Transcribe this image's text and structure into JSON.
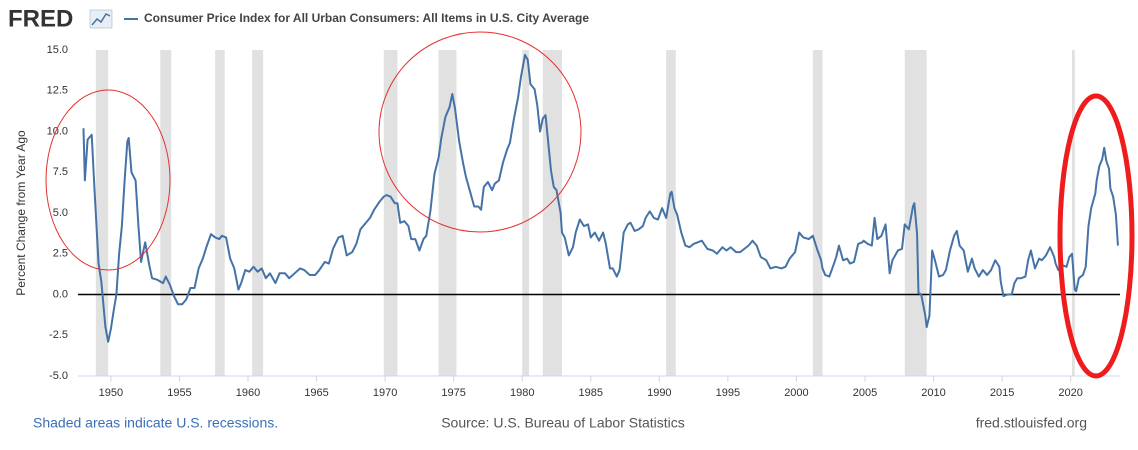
{
  "chart_data": {
    "type": "line",
    "logo": "FRED",
    "ylabel": "Percent Change from Year Ago",
    "footnote": "Shaded areas indicate U.S. recessions.",
    "source": "Source: U.S. Bureau of Labor Statistics",
    "url": "fred.stlouisfed.org",
    "xlim": [
      1947.6,
      2023.6
    ],
    "xticks": [
      1950,
      1955,
      1960,
      1965,
      1970,
      1975,
      1980,
      1985,
      1990,
      1995,
      2000,
      2005,
      2010,
      2015,
      2020
    ],
    "ylim": [
      -5,
      15
    ],
    "yticks": [
      {
        "value": 15,
        "label": "15.0"
      },
      {
        "value": 12.5,
        "label": "12.5"
      },
      {
        "value": 10,
        "label": "10.0"
      },
      {
        "value": 7.5,
        "label": "7.5"
      },
      {
        "value": 5,
        "label": "5.0"
      },
      {
        "value": 2.5,
        "label": "2.5"
      },
      {
        "value": 0,
        "label": "0.0"
      },
      {
        "value": -2.5,
        "label": "-2.5"
      },
      {
        "value": -5,
        "label": "-5.0"
      }
    ],
    "recession_color": "#e1e1e1",
    "recessions": [
      [
        1948.9,
        1949.8
      ],
      [
        1953.6,
        1954.4
      ],
      [
        1957.6,
        1958.3
      ],
      [
        1960.3,
        1961.1
      ],
      [
        1969.9,
        1970.9
      ],
      [
        1973.9,
        1975.2
      ],
      [
        1980.0,
        1980.5
      ],
      [
        1981.5,
        1982.9
      ],
      [
        1990.5,
        1991.2
      ],
      [
        2001.2,
        2001.9
      ],
      [
        2007.9,
        2009.5
      ],
      [
        2020.1,
        2020.3
      ]
    ],
    "x": [
      1948.0,
      1948.1,
      1948.3,
      1948.6,
      1948.8,
      1949.1,
      1949.3,
      1949.6,
      1949.8,
      1950.0,
      1950.2,
      1950.4,
      1950.6,
      1950.8,
      1951.0,
      1951.2,
      1951.3,
      1951.5,
      1951.8,
      1952.0,
      1952.2,
      1952.5,
      1952.8,
      1953.0,
      1953.4,
      1953.8,
      1954.0,
      1954.3,
      1954.6,
      1954.9,
      1955.2,
      1955.5,
      1955.8,
      1956.1,
      1956.4,
      1956.7,
      1957.0,
      1957.3,
      1957.6,
      1957.9,
      1958.1,
      1958.4,
      1958.7,
      1959.0,
      1959.3,
      1959.5,
      1959.8,
      1960.1,
      1960.4,
      1960.7,
      1961.0,
      1961.3,
      1961.6,
      1962.0,
      1962.3,
      1962.7,
      1963.0,
      1963.4,
      1963.8,
      1964.1,
      1964.5,
      1964.9,
      1965.2,
      1965.6,
      1965.9,
      1966.2,
      1966.6,
      1966.9,
      1967.2,
      1967.6,
      1967.9,
      1968.2,
      1968.6,
      1968.9,
      1969.2,
      1969.6,
      1969.9,
      1970.1,
      1970.4,
      1970.7,
      1970.9,
      1971.1,
      1971.4,
      1971.7,
      1971.9,
      1972.2,
      1972.5,
      1972.8,
      1973.0,
      1973.3,
      1973.6,
      1973.9,
      1974.1,
      1974.4,
      1974.7,
      1974.9,
      1975.1,
      1975.4,
      1975.7,
      1975.9,
      1976.2,
      1976.5,
      1976.8,
      1977.0,
      1977.2,
      1977.5,
      1977.8,
      1978.0,
      1978.3,
      1978.6,
      1978.9,
      1979.1,
      1979.4,
      1979.7,
      1979.9,
      1980.2,
      1980.4,
      1980.6,
      1980.9,
      1981.1,
      1981.3,
      1981.5,
      1981.7,
      1981.9,
      1982.1,
      1982.3,
      1982.5,
      1982.8,
      1982.9,
      1983.1,
      1983.4,
      1983.7,
      1983.9,
      1984.2,
      1984.5,
      1984.8,
      1985.0,
      1985.3,
      1985.6,
      1985.9,
      1986.1,
      1986.4,
      1986.6,
      1986.9,
      1987.1,
      1987.4,
      1987.7,
      1987.9,
      1988.2,
      1988.5,
      1988.8,
      1989.0,
      1989.3,
      1989.6,
      1989.9,
      1990.2,
      1990.5,
      1990.8,
      1990.9,
      1991.1,
      1991.3,
      1991.6,
      1991.9,
      1992.2,
      1992.5,
      1992.8,
      1993.1,
      1993.5,
      1993.9,
      1994.2,
      1994.6,
      1994.9,
      1995.2,
      1995.6,
      1995.9,
      1996.2,
      1996.5,
      1996.8,
      1997.1,
      1997.4,
      1997.8,
      1998.1,
      1998.5,
      1998.9,
      1999.2,
      1999.5,
      1999.9,
      2000.2,
      2000.5,
      2000.9,
      2001.2,
      2001.5,
      2001.8,
      2001.9,
      2002.1,
      2002.4,
      2002.7,
      2002.9,
      2003.1,
      2003.4,
      2003.7,
      2003.9,
      2004.2,
      2004.5,
      2004.8,
      2004.9,
      2005.2,
      2005.5,
      2005.7,
      2005.9,
      2006.2,
      2006.5,
      2006.8,
      2007.0,
      2007.4,
      2007.7,
      2007.9,
      2008.2,
      2008.5,
      2008.6,
      2008.8,
      2008.9,
      2009.1,
      2009.4,
      2009.5,
      2009.7,
      2009.9,
      2010.1,
      2010.4,
      2010.7,
      2010.9,
      2011.2,
      2011.5,
      2011.7,
      2011.9,
      2012.2,
      2012.5,
      2012.8,
      2013.0,
      2013.3,
      2013.6,
      2013.9,
      2014.2,
      2014.5,
      2014.8,
      2014.9,
      2015.1,
      2015.4,
      2015.7,
      2015.9,
      2016.1,
      2016.4,
      2016.7,
      2016.9,
      2017.1,
      2017.4,
      2017.7,
      2017.9,
      2018.2,
      2018.5,
      2018.8,
      2018.9,
      2019.1,
      2019.4,
      2019.7,
      2019.9,
      2020.1,
      2020.3,
      2020.4,
      2020.6,
      2020.9,
      2021.1,
      2021.3,
      2021.5,
      2021.8,
      2021.9,
      2022.1,
      2022.3,
      2022.45,
      2022.6,
      2022.8,
      2022.9,
      2023.1,
      2023.3,
      2023.45
    ],
    "series": [
      {
        "name": "Consumer Price Index for All Urban Consumers: All Items in U.S. City Average",
        "color": "#4572a7",
        "values": [
          10.2,
          7.0,
          9.5,
          9.8,
          6.5,
          1.9,
          0.8,
          -2.0,
          -2.9,
          -2.1,
          -1.0,
          0.0,
          2.5,
          4.2,
          7.0,
          9.4,
          9.6,
          7.5,
          7.0,
          4.3,
          2.0,
          3.2,
          1.8,
          1.0,
          0.9,
          0.7,
          1.1,
          0.6,
          -0.1,
          -0.6,
          -0.6,
          -0.3,
          0.4,
          0.4,
          1.6,
          2.2,
          3.0,
          3.7,
          3.5,
          3.4,
          3.6,
          3.5,
          2.2,
          1.6,
          0.3,
          0.7,
          1.5,
          1.4,
          1.7,
          1.4,
          1.6,
          1.0,
          1.3,
          0.7,
          1.3,
          1.3,
          1.0,
          1.3,
          1.6,
          1.5,
          1.2,
          1.2,
          1.5,
          2.0,
          1.9,
          2.8,
          3.5,
          3.6,
          2.4,
          2.6,
          3.1,
          4.0,
          4.4,
          4.7,
          5.2,
          5.7,
          6.0,
          6.1,
          6.0,
          5.6,
          5.6,
          4.4,
          4.5,
          4.2,
          3.4,
          3.4,
          2.7,
          3.4,
          3.6,
          5.1,
          7.4,
          8.4,
          9.6,
          10.9,
          11.5,
          12.3,
          11.4,
          9.4,
          8.0,
          7.2,
          6.3,
          5.4,
          5.4,
          5.2,
          6.6,
          6.9,
          6.4,
          6.8,
          7.0,
          8.1,
          8.9,
          9.3,
          10.8,
          12.1,
          13.3,
          14.7,
          14.4,
          12.9,
          12.6,
          11.6,
          10.0,
          10.8,
          11.0,
          9.3,
          7.6,
          6.6,
          6.4,
          5.0,
          3.8,
          3.5,
          2.4,
          2.9,
          3.8,
          4.6,
          4.2,
          4.3,
          3.5,
          3.8,
          3.3,
          3.8,
          3.1,
          1.6,
          1.6,
          1.1,
          1.5,
          3.8,
          4.3,
          4.4,
          3.9,
          4.0,
          4.2,
          4.7,
          5.1,
          4.7,
          4.6,
          5.3,
          4.7,
          6.2,
          6.3,
          5.3,
          4.9,
          3.8,
          3.0,
          2.9,
          3.1,
          3.2,
          3.3,
          2.8,
          2.7,
          2.5,
          2.9,
          2.7,
          2.9,
          2.6,
          2.6,
          2.8,
          3.0,
          3.3,
          3.0,
          2.3,
          2.1,
          1.6,
          1.7,
          1.6,
          1.7,
          2.2,
          2.6,
          3.8,
          3.5,
          3.4,
          3.6,
          2.8,
          2.1,
          1.6,
          1.2,
          1.1,
          1.8,
          2.3,
          3.0,
          2.1,
          2.2,
          1.9,
          2.0,
          3.1,
          3.2,
          3.3,
          3.1,
          3.0,
          4.7,
          3.4,
          3.6,
          4.3,
          1.3,
          2.1,
          2.7,
          2.8,
          4.3,
          4.0,
          5.4,
          5.6,
          3.7,
          0.1,
          0.0,
          -1.3,
          -2.0,
          -1.3,
          2.7,
          2.1,
          1.1,
          1.2,
          1.5,
          2.7,
          3.6,
          3.9,
          3.0,
          2.7,
          1.4,
          2.2,
          1.6,
          1.1,
          1.5,
          1.2,
          1.5,
          2.1,
          1.7,
          0.8,
          -0.1,
          0.0,
          0.0,
          0.7,
          1.0,
          1.0,
          1.1,
          2.1,
          2.7,
          1.6,
          2.2,
          2.1,
          2.4,
          2.9,
          2.3,
          1.9,
          1.5,
          1.8,
          1.7,
          2.3,
          2.5,
          0.3,
          0.2,
          1.0,
          1.2,
          1.7,
          4.2,
          5.3,
          6.2,
          7.0,
          7.9,
          8.3,
          9.0,
          8.2,
          7.7,
          6.5,
          6.0,
          4.9,
          3.0
        ]
      }
    ]
  }
}
